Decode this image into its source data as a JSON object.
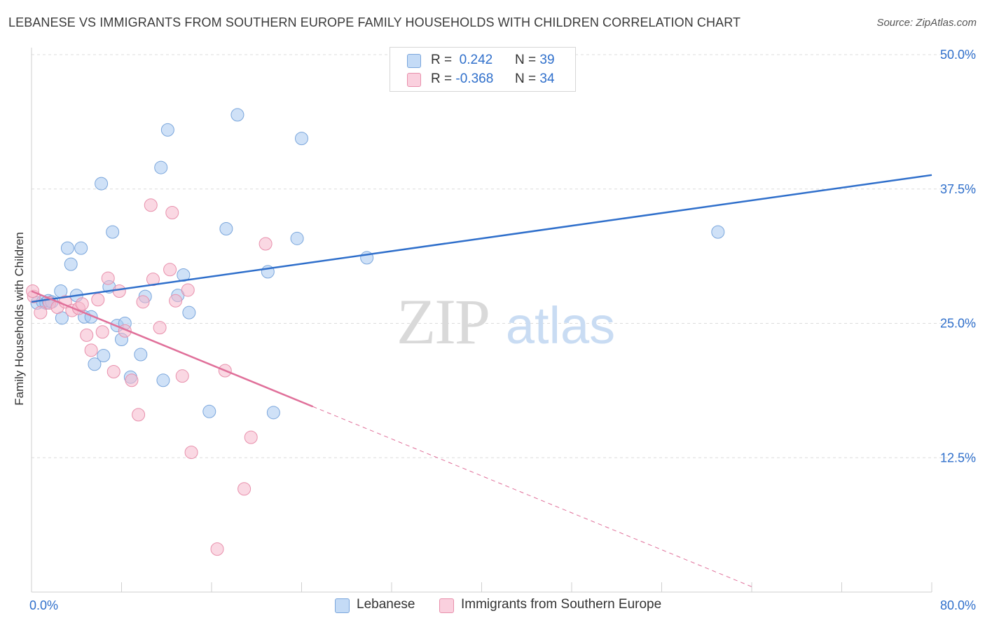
{
  "header": {
    "title": "LEBANESE VS IMMIGRANTS FROM SOUTHERN EUROPE FAMILY HOUSEHOLDS WITH CHILDREN CORRELATION CHART",
    "source": "Source: ZipAtlas.com"
  },
  "watermark": {
    "zip": "ZIP",
    "atlas": "atlas"
  },
  "legend_top": {
    "rows": [
      {
        "r_label": "R =",
        "r_value": "0.242",
        "n_label": "N =",
        "n_value": "39",
        "color": "#a8c8f0"
      },
      {
        "r_label": "R =",
        "r_value": "-0.368",
        "n_label": "N =",
        "n_value": "34",
        "color": "#f5b8cc"
      }
    ]
  },
  "legend_bottom": {
    "items": [
      {
        "label": "Lebanese",
        "color": "#a8c8f0"
      },
      {
        "label": "Immigrants from Southern Europe",
        "color": "#f5b8cc"
      }
    ]
  },
  "chart_data": {
    "type": "scatter",
    "ylabel": "Family Households with Children",
    "xlim": [
      0,
      80
    ],
    "ylim": [
      0,
      50
    ],
    "x_tick_labels": [
      {
        "value": 0,
        "label": "0.0%"
      },
      {
        "value": 80,
        "label": "80.0%"
      }
    ],
    "y_tick_labels": [
      {
        "value": 12.5,
        "label": "12.5%"
      },
      {
        "value": 25.0,
        "label": "25.0%"
      },
      {
        "value": 37.5,
        "label": "37.5%"
      },
      {
        "value": 50.0,
        "label": "50.0%"
      }
    ],
    "grid": true,
    "series": [
      {
        "name": "Lebanese",
        "color": "#a8c8f0",
        "stroke": "#7aa6dc",
        "line_color": "#2f6fcb",
        "trend": {
          "x_start": 0.0,
          "y_start": 27.0,
          "x_end": 80.0,
          "y_end": 38.8,
          "x_solid_end": 80.0
        },
        "points": [
          [
            0.5,
            26.9
          ],
          [
            1.0,
            27.0
          ],
          [
            1.3,
            26.9
          ],
          [
            1.5,
            27.1
          ],
          [
            1.8,
            27.0
          ],
          [
            2.7,
            25.5
          ],
          [
            2.6,
            28.0
          ],
          [
            3.2,
            32.0
          ],
          [
            3.5,
            30.5
          ],
          [
            4.0,
            27.6
          ],
          [
            4.4,
            32.0
          ],
          [
            4.7,
            25.6
          ],
          [
            5.3,
            25.6
          ],
          [
            5.6,
            21.2
          ],
          [
            6.2,
            38.0
          ],
          [
            6.4,
            22.0
          ],
          [
            6.9,
            28.4
          ],
          [
            7.2,
            33.5
          ],
          [
            7.6,
            24.8
          ],
          [
            8.0,
            23.5
          ],
          [
            8.3,
            25.0
          ],
          [
            8.8,
            20.0
          ],
          [
            9.7,
            22.1
          ],
          [
            10.1,
            27.5
          ],
          [
            11.5,
            39.5
          ],
          [
            11.7,
            19.7
          ],
          [
            12.1,
            43.0
          ],
          [
            13.0,
            27.6
          ],
          [
            13.5,
            29.5
          ],
          [
            14.0,
            26.0
          ],
          [
            15.8,
            16.8
          ],
          [
            17.3,
            33.8
          ],
          [
            18.3,
            44.4
          ],
          [
            21.0,
            29.8
          ],
          [
            21.5,
            16.7
          ],
          [
            23.6,
            32.9
          ],
          [
            24.0,
            42.2
          ],
          [
            29.8,
            31.1
          ],
          [
            61.0,
            33.5
          ]
        ]
      },
      {
        "name": "Immigrants from Southern Europe",
        "color": "#f5b8cc",
        "stroke": "#e890ac",
        "line_color": "#e0709a",
        "trend": {
          "x_start": 0.0,
          "y_start": 28.0,
          "x_end": 64.0,
          "y_end": 0.5,
          "x_solid_end": 25.0
        },
        "points": [
          [
            0.2,
            27.5
          ],
          [
            0.8,
            26.0
          ],
          [
            1.6,
            26.9
          ],
          [
            2.3,
            26.5
          ],
          [
            3.0,
            27.0
          ],
          [
            3.6,
            26.2
          ],
          [
            4.2,
            26.4
          ],
          [
            4.5,
            26.8
          ],
          [
            4.9,
            23.9
          ],
          [
            5.3,
            22.5
          ],
          [
            5.9,
            27.2
          ],
          [
            6.3,
            24.2
          ],
          [
            6.8,
            29.2
          ],
          [
            7.3,
            20.5
          ],
          [
            7.8,
            28.0
          ],
          [
            8.3,
            24.3
          ],
          [
            8.9,
            19.7
          ],
          [
            9.5,
            16.5
          ],
          [
            9.9,
            27.0
          ],
          [
            10.6,
            36.0
          ],
          [
            10.8,
            29.1
          ],
          [
            11.4,
            24.6
          ],
          [
            12.3,
            30.0
          ],
          [
            12.5,
            35.3
          ],
          [
            12.8,
            27.1
          ],
          [
            13.4,
            20.1
          ],
          [
            13.9,
            28.1
          ],
          [
            14.2,
            13.0
          ],
          [
            16.5,
            4.0
          ],
          [
            17.2,
            20.6
          ],
          [
            18.9,
            9.6
          ],
          [
            19.5,
            14.4
          ],
          [
            20.8,
            32.4
          ],
          [
            0.1,
            28.0
          ]
        ]
      }
    ]
  }
}
